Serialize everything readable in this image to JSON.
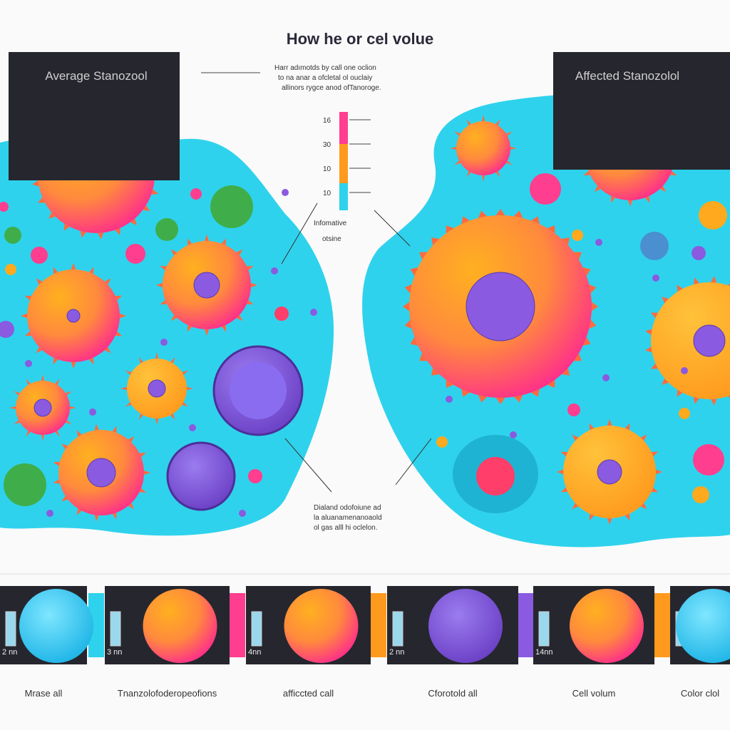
{
  "header": {
    "title": "How he or cel volue"
  },
  "panels": {
    "left_label": "Average Stanozool",
    "right_label": "Affected Stanozolol"
  },
  "annotations": {
    "top": [
      "Harr adımotds by call one oclion",
      "to na anar a ofcletal ol ouclaiy",
      "allinors rygce anod ofTanoroge."
    ],
    "scale_caption": [
      "Infomative",
      "otsine"
    ],
    "bottom": [
      "Dialand odofoiune ad",
      "la aluanamenanoaold",
      "ol gas alll hi oclelon."
    ]
  },
  "scale": {
    "labels": [
      "16",
      "30",
      "10",
      "10"
    ]
  },
  "strip": {
    "sizes": [
      "2 nn",
      "3 nn",
      "4nn",
      "2 nn",
      "14nn"
    ],
    "captions": [
      "Mrase all",
      "Tnanzolofoderopeofions",
      "afficcted call",
      "Cforotold all",
      "Cell volum",
      "Color clol"
    ]
  }
}
